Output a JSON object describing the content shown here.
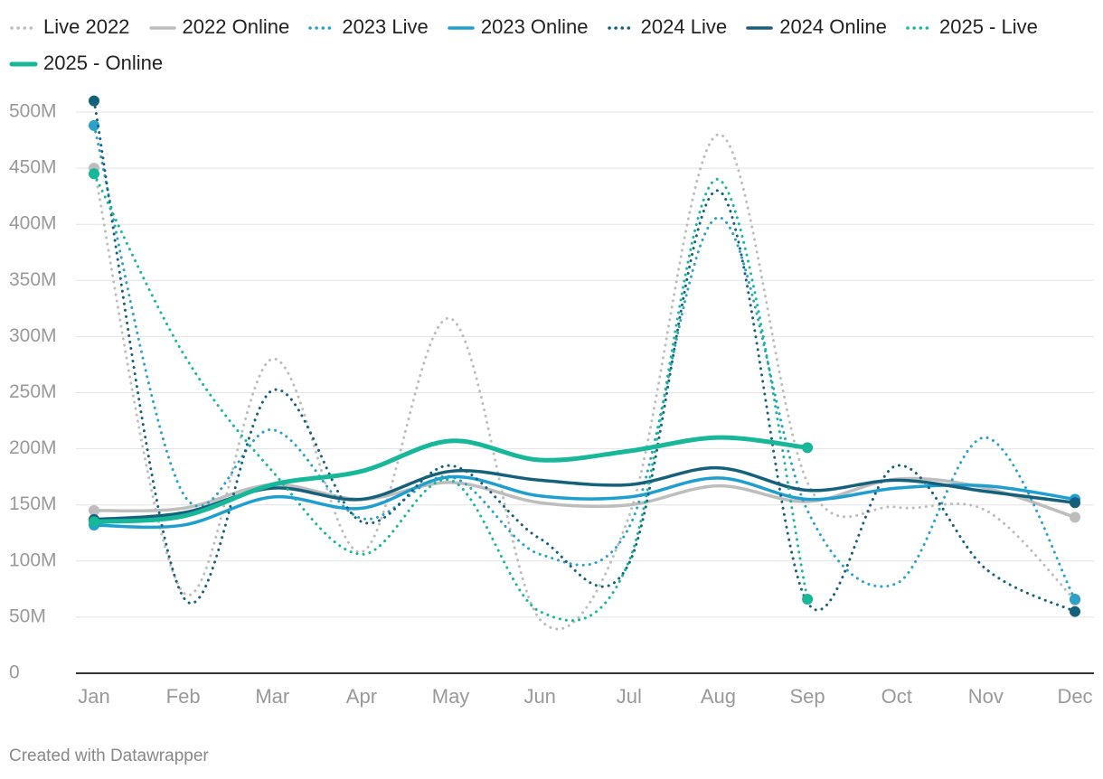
{
  "chart_data": {
    "type": "line",
    "categories": [
      "Jan",
      "Feb",
      "Mar",
      "Apr",
      "May",
      "Jun",
      "Jul",
      "Aug",
      "Sep",
      "Oct",
      "Nov",
      "Dec"
    ],
    "series": [
      {
        "name": "Live 2022",
        "color": "#bdbdbd",
        "style": "dotted",
        "values": [
          450,
          72,
          280,
          108,
          316,
          48,
          140,
          480,
          170,
          148,
          145,
          65
        ]
      },
      {
        "name": "2022 Online",
        "color": "#bdbdbd",
        "style": "solid",
        "values": [
          145,
          147,
          168,
          155,
          170,
          152,
          150,
          167,
          153,
          173,
          165,
          139
        ]
      },
      {
        "name": "2023 Live",
        "color": "#2ba0c8",
        "style": "dotted",
        "values": [
          488,
          160,
          217,
          138,
          175,
          106,
          130,
          406,
          145,
          80,
          210,
          66
        ]
      },
      {
        "name": "2023 Online",
        "color": "#1f9fcf",
        "style": "solid",
        "values": [
          132,
          132,
          157,
          147,
          175,
          158,
          157,
          174,
          155,
          165,
          167,
          155
        ]
      },
      {
        "name": "2024 Live",
        "color": "#15607a",
        "style": "dotted",
        "values": [
          510,
          68,
          252,
          135,
          185,
          120,
          98,
          430,
          63,
          185,
          93,
          55
        ]
      },
      {
        "name": "2024 Online",
        "color": "#15607a",
        "style": "solid",
        "values": [
          137,
          143,
          165,
          155,
          180,
          172,
          168,
          183,
          163,
          172,
          162,
          152
        ]
      },
      {
        "name": "2025 - Live",
        "color": "#17b89a",
        "style": "dotted",
        "values": [
          445,
          285,
          180,
          106,
          172,
          55,
          100,
          440,
          66,
          null,
          null,
          null
        ]
      },
      {
        "name": "2025 - Online",
        "color": "#17b89a",
        "style": "solid",
        "values": [
          135,
          140,
          168,
          180,
          207,
          190,
          198,
          210,
          201,
          null,
          null,
          null
        ]
      }
    ],
    "ylim": [
      0,
      500
    ],
    "yticks": [
      0,
      {
        "value": 50,
        "label": "50M"
      },
      {
        "value": 100,
        "label": "100M"
      },
      {
        "value": 150,
        "label": "150M"
      },
      {
        "value": 200,
        "label": "200M"
      },
      {
        "value": 250,
        "label": "250M"
      },
      {
        "value": 300,
        "label": "300M"
      },
      {
        "value": 350,
        "label": "350M"
      },
      {
        "value": 400,
        "label": "400M"
      },
      {
        "value": 450,
        "label": "450M"
      },
      {
        "value": 500,
        "label": "500M"
      }
    ],
    "grid": true,
    "footer": "Created with Datawrapper"
  }
}
